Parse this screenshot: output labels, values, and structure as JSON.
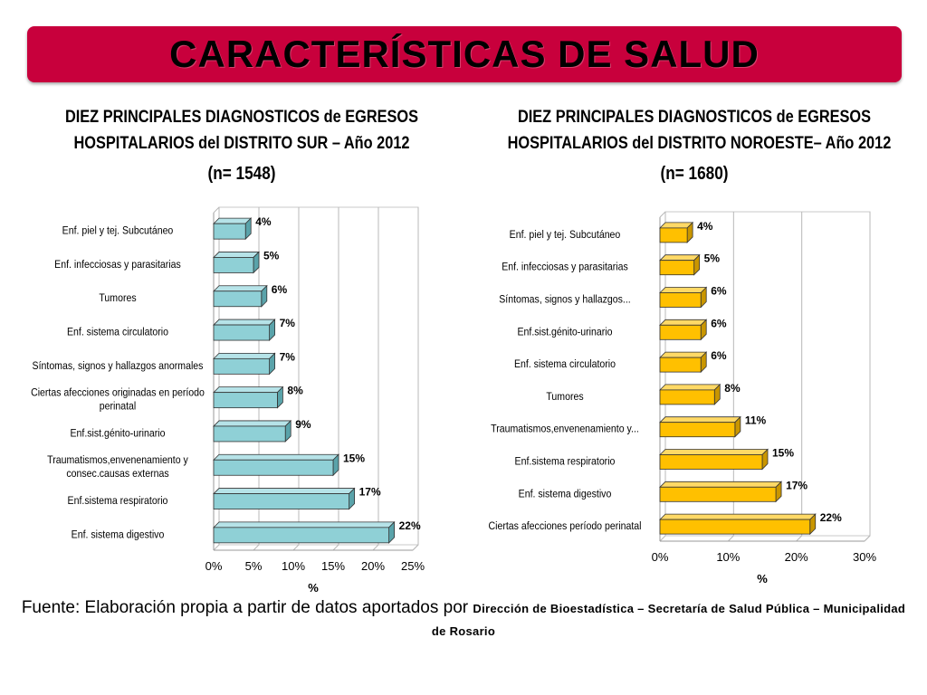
{
  "banner": {
    "title": "CARACTERÍSTICAS DE SALUD",
    "color": "#c8003c"
  },
  "chart_data": [
    {
      "type": "bar",
      "orientation": "horizontal",
      "title_lines": [
        "DIEZ PRINCIPALES DIAGNOSTICOS de EGRESOS",
        "HOSPITALARIOS del DISTRITO SUR – Año 2012"
      ],
      "subtitle": "(n= 1548)",
      "categories": [
        "Enf. piel y tej. Subcutáneo",
        "Enf. infecciosas y parasitarias",
        "Tumores",
        "Enf. sistema circulatorio",
        "Síntomas, signos y hallazgos anormales",
        "Ciertas afecciones originadas en período perinatal",
        "Enf.sist.génito-urinario",
        "Traumatismos,envenenamiento y consec.causas externas",
        "Enf.sistema respiratorio",
        "Enf. sistema digestivo"
      ],
      "category_lines": [
        [
          "Enf. piel y tej. Subcutáneo"
        ],
        [
          "Enf. infecciosas y parasitarias"
        ],
        [
          "Tumores"
        ],
        [
          "Enf. sistema circulatorio"
        ],
        [
          "Síntomas, signos y hallazgos anormales"
        ],
        [
          "Ciertas afecciones originadas en período",
          "perinatal"
        ],
        [
          "Enf.sist.génito-urinario"
        ],
        [
          "Traumatismos,envenenamiento y",
          "consec.causas externas"
        ],
        [
          "Enf.sistema respiratorio"
        ],
        [
          "Enf. sistema digestivo"
        ]
      ],
      "values": [
        4,
        5,
        6,
        7,
        7,
        8,
        9,
        15,
        17,
        22
      ],
      "data_labels": [
        "4%",
        "5%",
        "6%",
        "7%",
        "7%",
        "8%",
        "9%",
        "15%",
        "17%",
        "22%"
      ],
      "xlabel": "%",
      "xlim": [
        0,
        25
      ],
      "xticks": [
        0,
        5,
        10,
        15,
        20,
        25
      ],
      "xtick_labels": [
        "0%",
        "5%",
        "10%",
        "15%",
        "20%",
        "25%"
      ],
      "grid": true,
      "bar_color": "#8fd0d6",
      "bar_top_color": "#b6e3e8",
      "bar_side_color": "#5aa3aa"
    },
    {
      "type": "bar",
      "orientation": "horizontal",
      "title_lines": [
        "DIEZ PRINCIPALES DIAGNOSTICOS de EGRESOS",
        "HOSPITALARIOS del DISTRITO NOROESTE– Año 2012"
      ],
      "subtitle": "(n= 1680)",
      "categories": [
        "Enf. piel y tej. Subcutáneo",
        "Enf. infecciosas y parasitarias",
        "Síntomas, signos y hallazgos...",
        "Enf.sist.génito-urinario",
        "Enf. sistema circulatorio",
        "Tumores",
        "Traumatismos,envenenamiento y...",
        "Enf.sistema respiratorio",
        "Enf. sistema digestivo",
        "Ciertas afecciones período perinatal"
      ],
      "category_lines": [
        [
          "Enf. piel y tej. Subcutáneo"
        ],
        [
          "Enf. infecciosas y parasitarias"
        ],
        [
          "Síntomas, signos y hallazgos..."
        ],
        [
          "Enf.sist.génito-urinario"
        ],
        [
          "Enf. sistema circulatorio"
        ],
        [
          "Tumores"
        ],
        [
          "Traumatismos,envenenamiento y..."
        ],
        [
          "Enf.sistema respiratorio"
        ],
        [
          "Enf. sistema digestivo"
        ],
        [
          "Ciertas afecciones período perinatal"
        ]
      ],
      "values": [
        4,
        5,
        6,
        6,
        6,
        8,
        11,
        15,
        17,
        22
      ],
      "data_labels": [
        "4%",
        "5%",
        "6%",
        "6%",
        "6%",
        "8%",
        "11%",
        "15%",
        "17%",
        "22%"
      ],
      "xlabel": "%",
      "xlim": [
        0,
        30
      ],
      "xticks": [
        0,
        10,
        20,
        30
      ],
      "xtick_labels": [
        "0%",
        "10%",
        "20%",
        "30%"
      ],
      "grid": true,
      "bar_color": "#ffc000",
      "bar_top_color": "#ffd966",
      "bar_side_color": "#c99600"
    }
  ],
  "footer": {
    "source_prefix": "Fuente: Elaboración propia a partir de datos aportados por",
    "source_org_line1": "Dirección de Bioestadística – Secretaría de Salud Pública – Municipalidad",
    "source_org_line2": "de Rosario"
  }
}
